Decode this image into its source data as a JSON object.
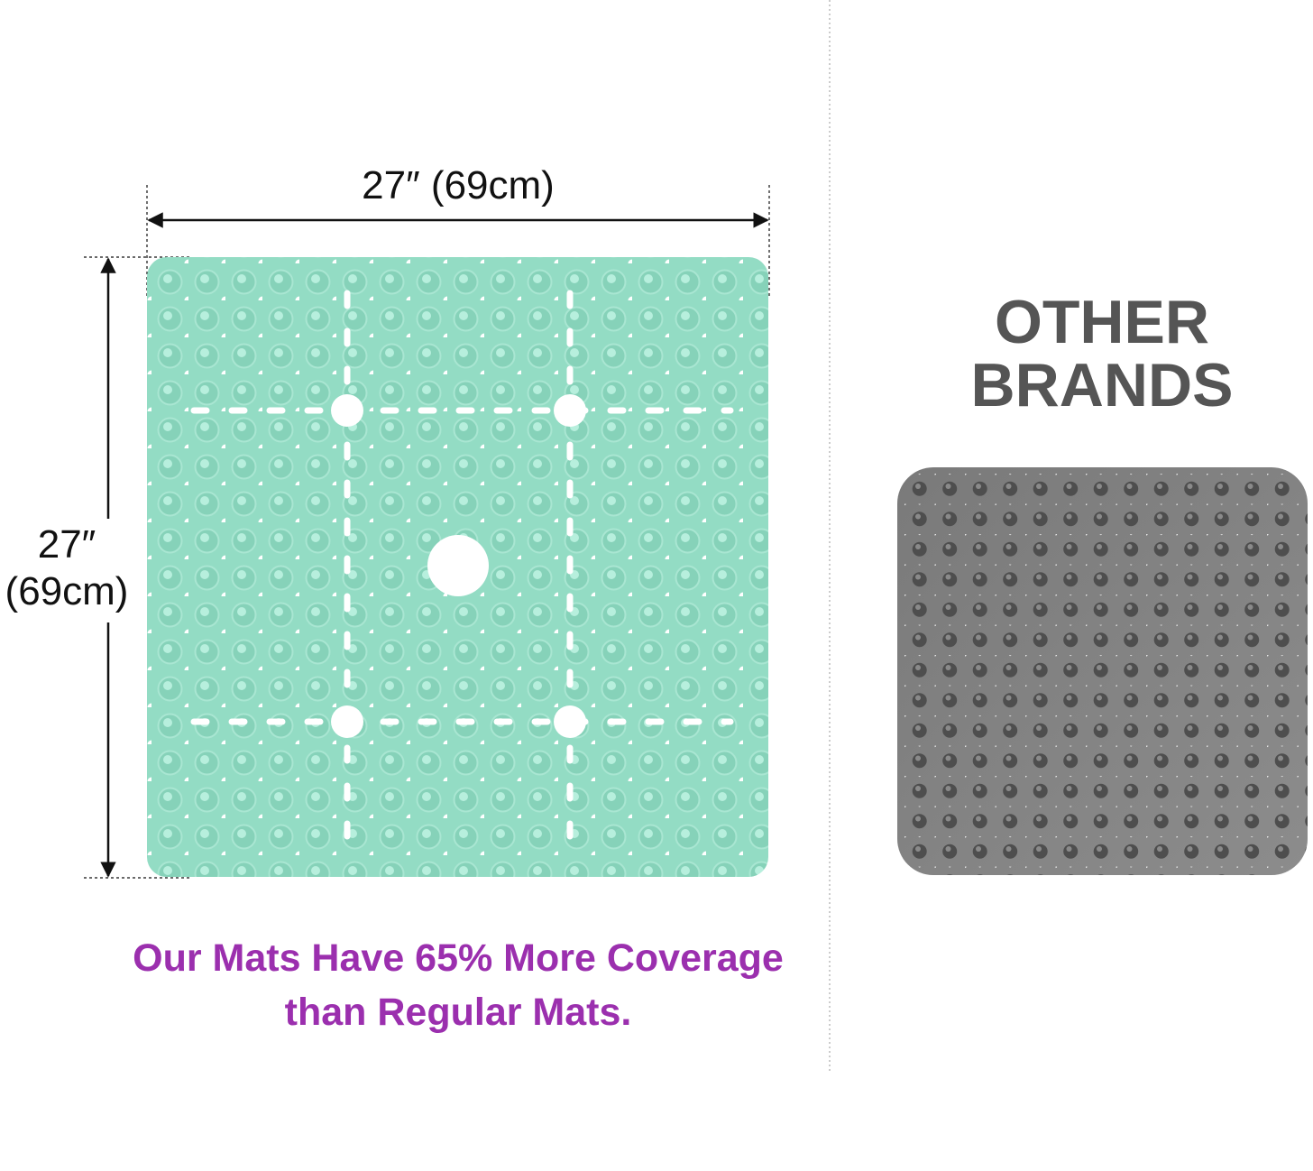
{
  "dimensions": {
    "width": "27″ (69cm)",
    "height": [
      "27″",
      "(69cm)"
    ]
  },
  "comparison": {
    "label": [
      "OTHER",
      "BRANDS"
    ]
  },
  "caption": [
    "Our Mats Have 65% More Coverage",
    "than Regular Mats."
  ]
}
